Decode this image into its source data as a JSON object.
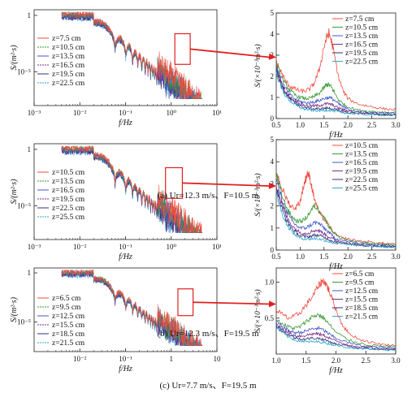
{
  "figure": {
    "captions": [
      "(a) Ur=12.3 m/s、F=10.5 m",
      "(b) Ur=12.3 m/s、F=19.5 m",
      "(c) Ur=7.7 m/s、F=19.5 m"
    ]
  },
  "colors": {
    "series": [
      "#ef4c3f",
      "#3a9a35",
      "#3f55c8",
      "#7b2f86",
      "#2f2f7a",
      "#2aa9c9",
      "#8a8a8a"
    ],
    "zoom_box": "#e02020",
    "arrow": "#e02020"
  },
  "chart_data": [
    {
      "type": "line",
      "panel": "a-left",
      "xscale": "log",
      "yscale": "log",
      "xlim": [
        0.001,
        10
      ],
      "xticks": [
        0.001,
        0.01,
        0.1,
        1,
        10
      ],
      "xtick_labels": [
        "10⁻³",
        "10⁻²",
        "10⁻¹",
        "10⁰",
        "10¹"
      ],
      "yticks": [
        1,
        1e-05
      ],
      "ytick_labels": [
        "1",
        "10⁻⁵"
      ],
      "xlabel": "f/Hz",
      "ylabel": "S/(m²·s)",
      "legend": [
        "z=7.5 cm",
        "z=10.5 cm",
        "z=13.5 cm",
        "z=16.5 cm",
        "z=19.5 cm",
        "z=22.5 cm"
      ],
      "legend_position": "left",
      "zoom_box_x": [
        1.2,
        2.6
      ]
    },
    {
      "type": "line",
      "panel": "a-right",
      "xlim": [
        0.5,
        3.0
      ],
      "xticks": [
        0.5,
        1.0,
        1.5,
        2.0,
        2.5,
        3.0
      ],
      "ylim": [
        0,
        5
      ],
      "yticks": [
        0,
        1,
        2,
        3,
        4,
        5
      ],
      "xlabel": "f/Hz",
      "ylabel": "S/(×10⁻³m²·s)",
      "legend_position": "top-right",
      "series": [
        {
          "name": "z=7.5 cm",
          "x": [
            0.5,
            0.6,
            0.7,
            0.8,
            0.9,
            1.0,
            1.1,
            1.2,
            1.3,
            1.4,
            1.5,
            1.55,
            1.6,
            1.65,
            1.7,
            1.8,
            1.9,
            2.0,
            2.2,
            2.4,
            2.6,
            2.8,
            3.0
          ],
          "y": [
            2.7,
            2.2,
            1.75,
            1.5,
            1.4,
            1.3,
            1.3,
            1.4,
            1.7,
            2.3,
            3.4,
            3.8,
            4.05,
            3.7,
            3.2,
            2.0,
            1.3,
            0.95,
            0.7,
            0.6,
            0.52,
            0.45,
            0.42
          ]
        },
        {
          "name": "z=10.5 cm",
          "x": [
            0.5,
            0.6,
            0.7,
            0.8,
            0.9,
            1.0,
            1.1,
            1.2,
            1.3,
            1.4,
            1.5,
            1.55,
            1.6,
            1.65,
            1.7,
            1.8,
            1.9,
            2.0,
            2.2,
            2.4,
            2.6,
            2.8,
            3.0
          ],
          "y": [
            2.6,
            2.0,
            1.6,
            1.3,
            1.1,
            1.0,
            0.95,
            0.95,
            1.05,
            1.2,
            1.45,
            1.6,
            1.6,
            1.5,
            1.3,
            0.9,
            0.7,
            0.55,
            0.4,
            0.35,
            0.32,
            0.3,
            0.28
          ]
        },
        {
          "name": "z=13.5 cm",
          "x": [
            0.5,
            0.6,
            0.7,
            0.8,
            0.9,
            1.0,
            1.1,
            1.2,
            1.3,
            1.4,
            1.5,
            1.6,
            1.7,
            1.8,
            1.9,
            2.0,
            2.2,
            2.4,
            2.6,
            2.8,
            3.0
          ],
          "y": [
            2.5,
            1.8,
            1.4,
            1.1,
            0.9,
            0.8,
            0.75,
            0.75,
            0.8,
            0.85,
            0.95,
            1.0,
            0.9,
            0.7,
            0.55,
            0.45,
            0.35,
            0.3,
            0.27,
            0.25,
            0.24
          ]
        },
        {
          "name": "z=16.5 cm",
          "x": [
            0.5,
            0.6,
            0.7,
            0.8,
            0.9,
            1.0,
            1.1,
            1.2,
            1.3,
            1.4,
            1.5,
            1.6,
            1.7,
            1.8,
            1.9,
            2.0,
            2.2,
            2.4,
            2.6,
            2.8,
            3.0
          ],
          "y": [
            2.4,
            1.7,
            1.25,
            1.0,
            0.8,
            0.7,
            0.62,
            0.6,
            0.6,
            0.62,
            0.68,
            0.7,
            0.62,
            0.5,
            0.42,
            0.36,
            0.3,
            0.26,
            0.23,
            0.21,
            0.2
          ]
        },
        {
          "name": "z=19.5 cm",
          "x": [
            0.5,
            0.6,
            0.7,
            0.8,
            0.9,
            1.0,
            1.1,
            1.2,
            1.3,
            1.4,
            1.5,
            1.6,
            1.7,
            1.8,
            1.9,
            2.0,
            2.2,
            2.4,
            2.6,
            2.8,
            3.0
          ],
          "y": [
            2.3,
            1.6,
            1.15,
            0.9,
            0.72,
            0.6,
            0.52,
            0.48,
            0.46,
            0.46,
            0.48,
            0.5,
            0.45,
            0.38,
            0.33,
            0.29,
            0.25,
            0.22,
            0.2,
            0.18,
            0.17
          ]
        },
        {
          "name": "z=22.5 cm",
          "x": [
            0.5,
            0.6,
            0.7,
            0.8,
            0.9,
            1.0,
            1.1,
            1.2,
            1.3,
            1.4,
            1.5,
            1.6,
            1.7,
            1.8,
            1.9,
            2.0,
            2.2,
            2.4,
            2.6,
            2.8,
            3.0
          ],
          "y": [
            2.2,
            1.5,
            1.05,
            0.82,
            0.65,
            0.52,
            0.45,
            0.4,
            0.38,
            0.37,
            0.38,
            0.4,
            0.36,
            0.32,
            0.28,
            0.25,
            0.22,
            0.19,
            0.17,
            0.16,
            0.15
          ]
        }
      ]
    },
    {
      "type": "line",
      "panel": "b-left",
      "xscale": "log",
      "yscale": "log",
      "xlim": [
        0.001,
        10
      ],
      "xticks": [
        0.001,
        0.01,
        0.1,
        1,
        10
      ],
      "xtick_labels": [
        "10⁻³",
        "10⁻²",
        "10⁻¹",
        "10⁰",
        "10¹"
      ],
      "yticks": [
        1,
        1e-05
      ],
      "ytick_labels": [
        "1",
        "10⁻⁵"
      ],
      "xlabel": "f/Hz",
      "ylabel": "S/(m²·s)",
      "legend": [
        "z=10.5 cm",
        "z=13.5 cm",
        "z=16.5 cm",
        "z=19.5 cm",
        "z=22.5 cm",
        "z=25.5 cm"
      ],
      "legend_position": "left",
      "zoom_box_x": [
        0.75,
        1.75
      ]
    },
    {
      "type": "line",
      "panel": "b-right",
      "xlim": [
        0.5,
        3.0
      ],
      "xticks": [
        0.5,
        1.0,
        1.5,
        2.0,
        2.5,
        3.0
      ],
      "ylim": [
        0,
        5
      ],
      "yticks": [
        0,
        1,
        2,
        3,
        4,
        5
      ],
      "xlabel": "f/Hz",
      "ylabel": "S/(×10⁻³m²·s)",
      "legend_position": "top-right",
      "series": [
        {
          "name": "z=10.5 cm",
          "x": [
            0.5,
            0.6,
            0.7,
            0.8,
            0.9,
            1.0,
            1.05,
            1.1,
            1.15,
            1.2,
            1.25,
            1.3,
            1.4,
            1.5,
            1.6,
            1.7,
            1.8,
            2.0,
            2.2,
            2.4,
            2.6,
            2.8,
            3.0
          ],
          "y": [
            3.6,
            2.9,
            2.4,
            2.0,
            1.9,
            2.2,
            2.7,
            3.1,
            3.5,
            3.3,
            2.8,
            2.3,
            1.7,
            1.4,
            1.1,
            0.8,
            0.6,
            0.5,
            0.42,
            0.38,
            0.33,
            0.3,
            0.28
          ]
        },
        {
          "name": "z=13.5 cm",
          "x": [
            0.5,
            0.6,
            0.7,
            0.8,
            0.9,
            1.0,
            1.1,
            1.2,
            1.3,
            1.4,
            1.5,
            1.6,
            1.7,
            1.8,
            2.0,
            2.2,
            2.4,
            2.6,
            2.8,
            3.0
          ],
          "y": [
            3.4,
            2.6,
            2.0,
            1.6,
            1.35,
            1.3,
            1.4,
            1.7,
            2.0,
            1.8,
            1.5,
            1.1,
            0.8,
            0.6,
            0.45,
            0.37,
            0.32,
            0.28,
            0.26,
            0.24
          ]
        },
        {
          "name": "z=16.5 cm",
          "x": [
            0.5,
            0.6,
            0.7,
            0.8,
            0.9,
            1.0,
            1.1,
            1.2,
            1.3,
            1.4,
            1.5,
            1.6,
            1.7,
            1.8,
            2.0,
            2.2,
            2.4,
            2.6,
            2.8,
            3.0
          ],
          "y": [
            3.2,
            2.4,
            1.8,
            1.4,
            1.15,
            1.0,
            1.0,
            1.1,
            1.25,
            1.2,
            1.0,
            0.8,
            0.6,
            0.48,
            0.38,
            0.31,
            0.27,
            0.24,
            0.22,
            0.2
          ]
        },
        {
          "name": "z=19.5 cm",
          "x": [
            0.5,
            0.6,
            0.7,
            0.8,
            0.9,
            1.0,
            1.1,
            1.2,
            1.3,
            1.4,
            1.5,
            1.6,
            1.7,
            1.8,
            2.0,
            2.2,
            2.4,
            2.6,
            2.8,
            3.0
          ],
          "y": [
            3.0,
            2.2,
            1.6,
            1.2,
            0.95,
            0.8,
            0.75,
            0.8,
            0.9,
            0.88,
            0.75,
            0.6,
            0.48,
            0.4,
            0.32,
            0.27,
            0.23,
            0.21,
            0.19,
            0.17
          ]
        },
        {
          "name": "z=22.5 cm",
          "x": [
            0.5,
            0.6,
            0.7,
            0.8,
            0.9,
            1.0,
            1.1,
            1.2,
            1.3,
            1.4,
            1.5,
            1.6,
            1.7,
            1.8,
            2.0,
            2.2,
            2.4,
            2.6,
            2.8,
            3.0
          ],
          "y": [
            2.8,
            2.0,
            1.4,
            1.05,
            0.8,
            0.65,
            0.6,
            0.62,
            0.68,
            0.66,
            0.58,
            0.48,
            0.4,
            0.34,
            0.28,
            0.24,
            0.2,
            0.18,
            0.16,
            0.15
          ]
        },
        {
          "name": "z=25.5 cm",
          "x": [
            0.5,
            0.6,
            0.7,
            0.8,
            0.9,
            1.0,
            1.1,
            1.2,
            1.3,
            1.4,
            1.5,
            1.6,
            1.7,
            1.8,
            2.0,
            2.2,
            2.4,
            2.6,
            2.8,
            3.0
          ],
          "y": [
            2.6,
            1.8,
            1.25,
            0.9,
            0.68,
            0.55,
            0.5,
            0.5,
            0.52,
            0.5,
            0.45,
            0.38,
            0.33,
            0.29,
            0.24,
            0.21,
            0.18,
            0.16,
            0.14,
            0.13
          ]
        }
      ]
    },
    {
      "type": "line",
      "panel": "c-left",
      "xscale": "log",
      "yscale": "log",
      "xlim": [
        0.001,
        10
      ],
      "xticks": [
        0.01,
        0.1,
        1,
        10
      ],
      "xtick_labels": [
        "10⁻²",
        "10⁻¹",
        "1",
        "10"
      ],
      "yticks": [
        1,
        1e-05
      ],
      "ytick_labels": [
        "1",
        "10⁻⁵"
      ],
      "xlabel": "f/Hz",
      "ylabel": "S/(m²·s)",
      "legend": [
        "z=6.5 cm",
        "z=9.5 cm",
        "z=12.5 cm",
        "z=15.5 cm",
        "z=18.5 cm",
        "z=21.5 cm"
      ],
      "legend_position": "left",
      "zoom_box_x": [
        1.4,
        3.0
      ]
    },
    {
      "type": "line",
      "panel": "c-right",
      "xlim": [
        1.0,
        3.0
      ],
      "xticks": [
        1.0,
        1.5,
        2.0,
        2.5,
        3.0
      ],
      "ylim": [
        0,
        1.2
      ],
      "yticks": [
        0.5,
        1.0
      ],
      "xlabel": "f/Hz",
      "ylabel": "S/(×10⁻³m²·s)",
      "legend_position": "top-right",
      "series": [
        {
          "name": "z=6.5 cm",
          "x": [
            1.0,
            1.1,
            1.2,
            1.3,
            1.4,
            1.5,
            1.6,
            1.7,
            1.75,
            1.8,
            1.85,
            1.9,
            2.0,
            2.1,
            2.2,
            2.4,
            2.6,
            2.8,
            3.0
          ],
          "y": [
            0.62,
            0.55,
            0.5,
            0.52,
            0.58,
            0.68,
            0.8,
            0.93,
            1.0,
            1.02,
            0.95,
            0.85,
            0.62,
            0.42,
            0.3,
            0.2,
            0.16,
            0.13,
            0.12
          ]
        },
        {
          "name": "z=9.5 cm",
          "x": [
            1.0,
            1.1,
            1.2,
            1.3,
            1.4,
            1.5,
            1.6,
            1.7,
            1.8,
            1.9,
            2.0,
            2.2,
            2.4,
            2.6,
            2.8,
            3.0
          ],
          "y": [
            0.48,
            0.42,
            0.38,
            0.36,
            0.38,
            0.45,
            0.52,
            0.55,
            0.5,
            0.4,
            0.3,
            0.2,
            0.15,
            0.12,
            0.11,
            0.1
          ]
        },
        {
          "name": "z=12.5 cm",
          "x": [
            1.0,
            1.1,
            1.2,
            1.3,
            1.4,
            1.5,
            1.6,
            1.7,
            1.8,
            1.9,
            2.0,
            2.2,
            2.4,
            2.6,
            2.8,
            3.0
          ],
          "y": [
            0.45,
            0.38,
            0.33,
            0.3,
            0.3,
            0.32,
            0.35,
            0.36,
            0.33,
            0.27,
            0.22,
            0.16,
            0.12,
            0.1,
            0.09,
            0.08
          ]
        },
        {
          "name": "z=15.5 cm",
          "x": [
            1.0,
            1.1,
            1.2,
            1.3,
            1.4,
            1.5,
            1.6,
            1.7,
            1.8,
            1.9,
            2.0,
            2.2,
            2.4,
            2.6,
            2.8,
            3.0
          ],
          "y": [
            0.42,
            0.35,
            0.3,
            0.26,
            0.25,
            0.26,
            0.28,
            0.28,
            0.26,
            0.22,
            0.18,
            0.13,
            0.1,
            0.085,
            0.075,
            0.07
          ]
        },
        {
          "name": "z=18.5 cm",
          "x": [
            1.0,
            1.1,
            1.2,
            1.3,
            1.4,
            1.5,
            1.6,
            1.7,
            1.8,
            1.9,
            2.0,
            2.2,
            2.4,
            2.6,
            2.8,
            3.0
          ],
          "y": [
            0.4,
            0.32,
            0.27,
            0.23,
            0.21,
            0.21,
            0.22,
            0.22,
            0.2,
            0.17,
            0.14,
            0.11,
            0.085,
            0.072,
            0.065,
            0.06
          ]
        },
        {
          "name": "z=21.5 cm",
          "x": [
            1.0,
            1.1,
            1.2,
            1.3,
            1.4,
            1.5,
            1.6,
            1.7,
            1.8,
            1.9,
            2.0,
            2.2,
            2.4,
            2.6,
            2.8,
            3.0
          ],
          "y": [
            0.38,
            0.3,
            0.24,
            0.2,
            0.18,
            0.17,
            0.17,
            0.17,
            0.16,
            0.14,
            0.12,
            0.095,
            0.075,
            0.064,
            0.058,
            0.054
          ]
        }
      ]
    }
  ]
}
